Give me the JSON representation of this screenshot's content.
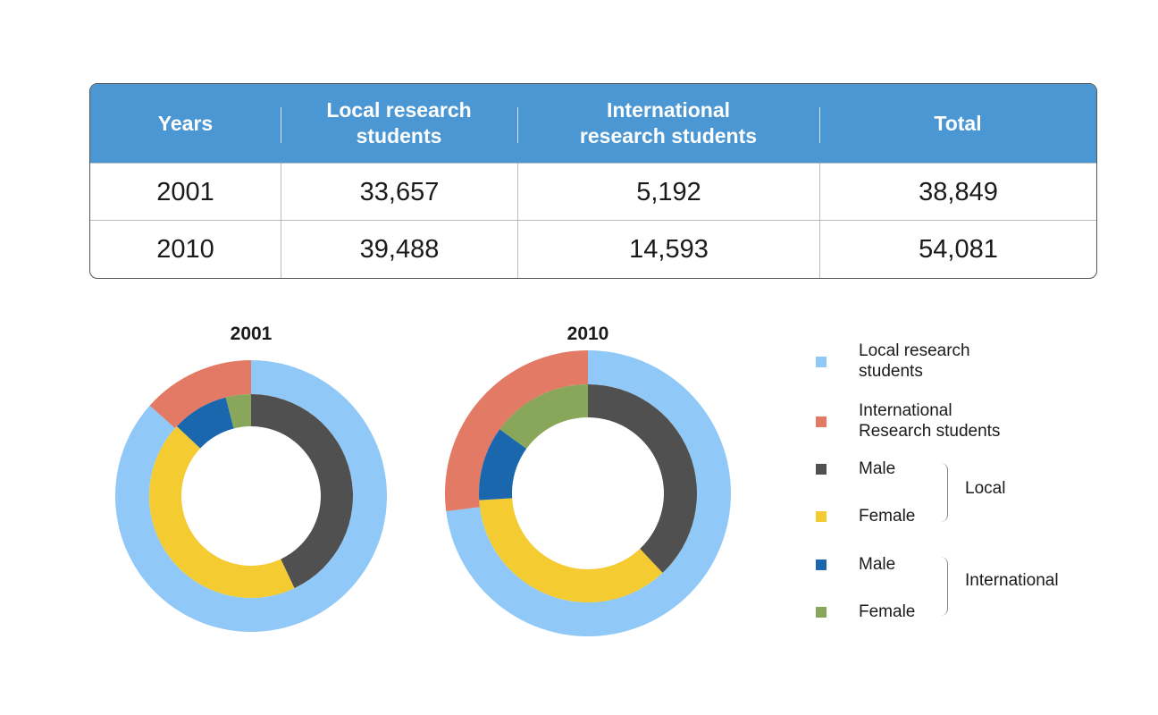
{
  "table": {
    "headers": [
      "Years",
      "Local research students",
      "International research students",
      "Total"
    ],
    "rows": [
      [
        "2001",
        "33,657",
        "5,192",
        "38,849"
      ],
      [
        "2010",
        "39,488",
        "14,593",
        "54,081"
      ]
    ]
  },
  "chart_data": [
    {
      "type": "pie",
      "title": "2001",
      "outer_ring": [
        {
          "label": "Local research students",
          "value": 86.6
        },
        {
          "label": "International Research students",
          "value": 13.4
        }
      ],
      "inner_ring": [
        {
          "label": "Local Male",
          "value": 43
        },
        {
          "label": "Local Female",
          "value": 44
        },
        {
          "label": "International Male",
          "value": 9
        },
        {
          "label": "International Female",
          "value": 4
        }
      ]
    },
    {
      "type": "pie",
      "title": "2010",
      "outer_ring": [
        {
          "label": "Local research students",
          "value": 73
        },
        {
          "label": "International Research students",
          "value": 27
        }
      ],
      "inner_ring": [
        {
          "label": "Local Male",
          "value": 38
        },
        {
          "label": "Local Female",
          "value": 36
        },
        {
          "label": "International Male",
          "value": 11
        },
        {
          "label": "International Female",
          "value": 15
        }
      ]
    }
  ],
  "legend": {
    "items": [
      {
        "label": "Local research students",
        "color": "#90c9f7"
      },
      {
        "label": "International Research students",
        "color": "#e27a66"
      },
      {
        "label": "Male",
        "color": "#505050"
      },
      {
        "label": "Female",
        "color": "#f4cb30"
      },
      {
        "label": "Male",
        "color": "#1a67ad"
      },
      {
        "label": "Female",
        "color": "#88a75a"
      }
    ],
    "groups": [
      "Local",
      "International"
    ]
  },
  "colors": {
    "outer": [
      "#90c9f7",
      "#e27a66"
    ],
    "inner": [
      "#505050",
      "#f4cb30",
      "#1a67ad",
      "#88a75a"
    ]
  }
}
